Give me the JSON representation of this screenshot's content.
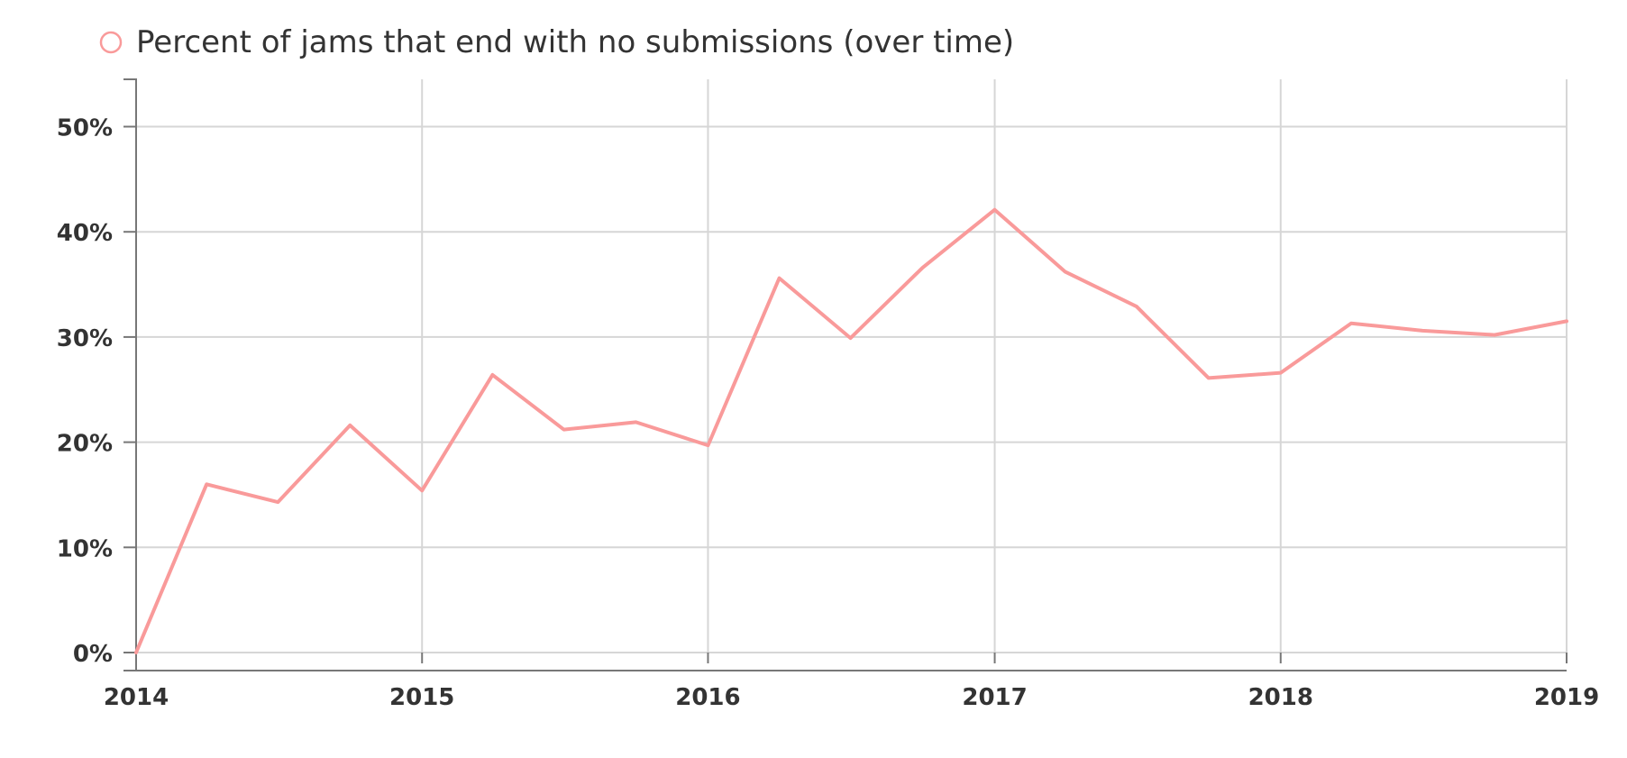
{
  "chart_data": {
    "type": "line",
    "title": "",
    "xlabel": "",
    "ylabel": "",
    "legend_position": "top-left",
    "grid": true,
    "x_ticks": [
      "2014",
      "2015",
      "2016",
      "2017",
      "2018",
      "2019"
    ],
    "y_ticks": [
      "0%",
      "10%",
      "20%",
      "30%",
      "40%",
      "50%"
    ],
    "ylim": [
      0,
      54.5
    ],
    "xlim": [
      "2014-01-01",
      "2019-01-01"
    ],
    "x": [
      "2014-01-01",
      "2014-04-01",
      "2014-07-01",
      "2014-10-01",
      "2015-01-01",
      "2015-04-01",
      "2015-07-01",
      "2015-10-01",
      "2016-01-01",
      "2016-04-01",
      "2016-07-01",
      "2016-10-01",
      "2017-01-01",
      "2017-04-01",
      "2017-07-01",
      "2017-10-01",
      "2018-01-01",
      "2018-04-01",
      "2018-07-01",
      "2018-10-01",
      "2019-01-01"
    ],
    "series": [
      {
        "name": "Percent of jams that end with no submissions (over time)",
        "color": "#f99a9a",
        "values": [
          0,
          16,
          14.3,
          21.6,
          15.4,
          26.4,
          21.2,
          21.9,
          19.7,
          35.6,
          29.9,
          36.6,
          42.1,
          36.2,
          32.9,
          26.1,
          26.6,
          31.3,
          30.6,
          30.2,
          31.5
        ]
      }
    ]
  }
}
